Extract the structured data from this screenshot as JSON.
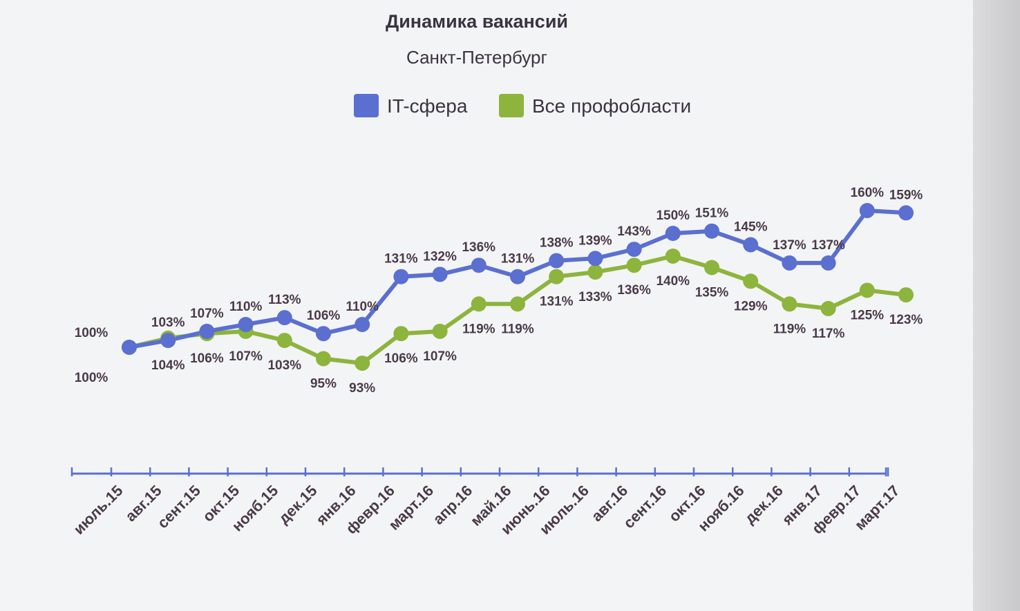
{
  "chart_data": {
    "type": "line",
    "title": "Динамика вакансий",
    "subtitle": "Санкт-Петербург",
    "categories": [
      "июль.15",
      "авг.15",
      "сент.15",
      "окт.15",
      "нояб.15",
      "дек.15",
      "янв.16",
      "февр.16",
      "март.16",
      "апр.16",
      "май.16",
      "июнь.16",
      "июль.16",
      "авг.16",
      "сент.16",
      "окт.16",
      "нояб.16",
      "дек.16",
      "янв.17",
      "февр.17",
      "март.17"
    ],
    "series": [
      {
        "name": "IT-сфера",
        "color": "#5a6fd0",
        "values": [
          100,
          103,
          107,
          110,
          113,
          106,
          110,
          131,
          132,
          136,
          131,
          138,
          139,
          143,
          150,
          151,
          145,
          137,
          137,
          160,
          159
        ],
        "labels": [
          "100%",
          "103%",
          "107%",
          "110%",
          "113%",
          "106%",
          "110%",
          "131%",
          "132%",
          "136%",
          "131%",
          "138%",
          "139%",
          "143%",
          "150%",
          "151%",
          "145%",
          "137%",
          "137%",
          "160%",
          "159%"
        ]
      },
      {
        "name": "Все профобласти",
        "color": "#8db43c",
        "values": [
          100,
          104,
          106,
          107,
          103,
          95,
          93,
          106,
          107,
          119,
          119,
          131,
          133,
          136,
          140,
          135,
          129,
          119,
          117,
          125,
          123
        ],
        "labels": [
          "100%",
          "104%",
          "106%",
          "107%",
          "103%",
          "95%",
          "93%",
          "106%",
          "107%",
          "119%",
          "119%",
          "131%",
          "133%",
          "136%",
          "140%",
          "135%",
          "129%",
          "119%",
          "117%",
          "125%",
          "123%"
        ]
      }
    ],
    "axis_color": "#5a6fd0",
    "text_color": "#4a3a48",
    "legend_position": "top-center",
    "grid": false
  }
}
